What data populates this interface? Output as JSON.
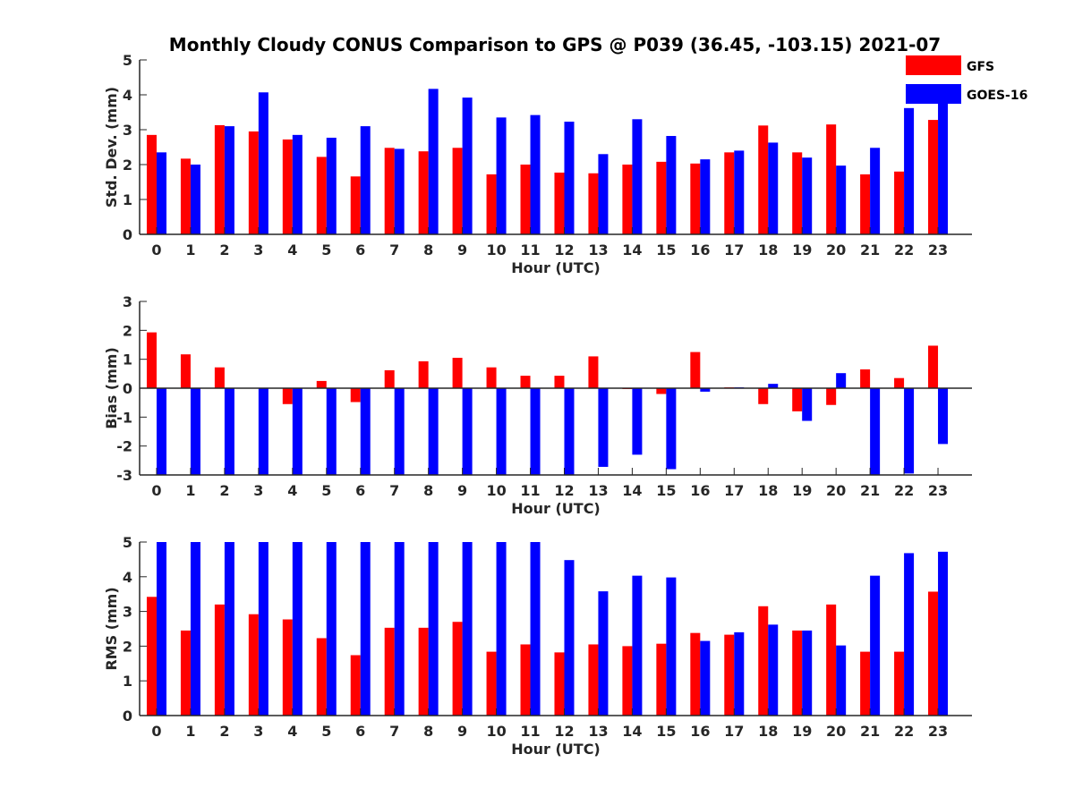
{
  "title": "Monthly Cloudy CONUS Comparison to GPS @ P039 (36.45, -103.15) 2021-07",
  "legend": [
    {
      "name": "GFS",
      "color": "#ff0000"
    },
    {
      "name": "GOES-16",
      "color": "#0000ff"
    }
  ],
  "chart_data": [
    {
      "type": "bar",
      "xlabel": "Hour (UTC)",
      "ylabel": "Std. Dev. (mm)",
      "ylim": [
        0,
        5
      ],
      "yticks": [
        0,
        1,
        2,
        3,
        4,
        5
      ],
      "categories": [
        "0",
        "1",
        "2",
        "3",
        "4",
        "5",
        "6",
        "7",
        "8",
        "9",
        "10",
        "11",
        "12",
        "13",
        "14",
        "15",
        "16",
        "17",
        "18",
        "19",
        "20",
        "21",
        "22",
        "23"
      ],
      "series": [
        {
          "name": "GFS",
          "color": "#ff0000",
          "values": [
            2.85,
            2.17,
            3.13,
            2.95,
            2.72,
            2.22,
            1.66,
            2.48,
            2.38,
            2.48,
            1.72,
            2.0,
            1.77,
            1.75,
            2.0,
            2.08,
            2.03,
            2.35,
            3.12,
            2.35,
            3.15,
            1.72,
            1.8,
            3.28
          ]
        },
        {
          "name": "GOES-16",
          "color": "#0000ff",
          "values": [
            2.35,
            2.0,
            3.1,
            4.07,
            2.85,
            2.77,
            3.1,
            2.45,
            4.17,
            3.92,
            3.35,
            3.42,
            3.23,
            2.3,
            3.3,
            2.82,
            2.15,
            2.4,
            2.63,
            2.2,
            1.97,
            2.48,
            3.62,
            3.95
          ]
        }
      ]
    },
    {
      "type": "bar",
      "xlabel": "Hour (UTC)",
      "ylabel": "Bias (mm)",
      "ylim": [
        -3,
        3
      ],
      "yticks": [
        -3,
        -2,
        -1,
        0,
        1,
        2,
        3
      ],
      "categories": [
        "0",
        "1",
        "2",
        "3",
        "4",
        "5",
        "6",
        "7",
        "8",
        "9",
        "10",
        "11",
        "12",
        "13",
        "14",
        "15",
        "16",
        "17",
        "18",
        "19",
        "20",
        "21",
        "22",
        "23"
      ],
      "series": [
        {
          "name": "GFS",
          "color": "#ff0000",
          "values": [
            1.93,
            1.17,
            0.72,
            0.0,
            -0.55,
            0.25,
            -0.48,
            0.62,
            0.93,
            1.05,
            0.72,
            0.43,
            0.43,
            1.1,
            -0.03,
            -0.2,
            1.25,
            0.03,
            -0.55,
            -0.8,
            -0.58,
            0.65,
            0.35,
            1.47
          ]
        },
        {
          "name": "GOES-16",
          "color": "#0000ff",
          "values": [
            -3.0,
            -3.0,
            -3.0,
            -3.0,
            -3.0,
            -3.0,
            -3.0,
            -3.0,
            -3.0,
            -3.0,
            -3.0,
            -3.0,
            -3.0,
            -2.72,
            -2.3,
            -2.8,
            -0.12,
            0.03,
            0.15,
            -1.13,
            0.52,
            -3.0,
            -2.95,
            -1.93
          ]
        }
      ]
    },
    {
      "type": "bar",
      "xlabel": "Hour (UTC)",
      "ylabel": "RMS (mm)",
      "ylim": [
        0,
        5
      ],
      "yticks": [
        0,
        1,
        2,
        3,
        4,
        5
      ],
      "categories": [
        "0",
        "1",
        "2",
        "3",
        "4",
        "5",
        "6",
        "7",
        "8",
        "9",
        "10",
        "11",
        "12",
        "13",
        "14",
        "15",
        "16",
        "17",
        "18",
        "19",
        "20",
        "21",
        "22",
        "23"
      ],
      "series": [
        {
          "name": "GFS",
          "color": "#ff0000",
          "values": [
            3.42,
            2.45,
            3.2,
            2.92,
            2.77,
            2.23,
            1.74,
            2.53,
            2.53,
            2.7,
            1.84,
            2.05,
            1.82,
            2.05,
            2.0,
            2.07,
            2.38,
            2.33,
            3.15,
            2.45,
            3.2,
            1.84,
            1.84,
            3.57
          ]
        },
        {
          "name": "GOES-16",
          "color": "#0000ff",
          "values": [
            5.0,
            5.0,
            5.0,
            5.0,
            5.0,
            5.0,
            5.0,
            5.0,
            5.0,
            5.0,
            5.0,
            5.0,
            4.48,
            3.58,
            4.03,
            3.98,
            2.15,
            2.4,
            2.62,
            2.45,
            2.02,
            4.03,
            4.68,
            4.72
          ]
        }
      ]
    }
  ]
}
